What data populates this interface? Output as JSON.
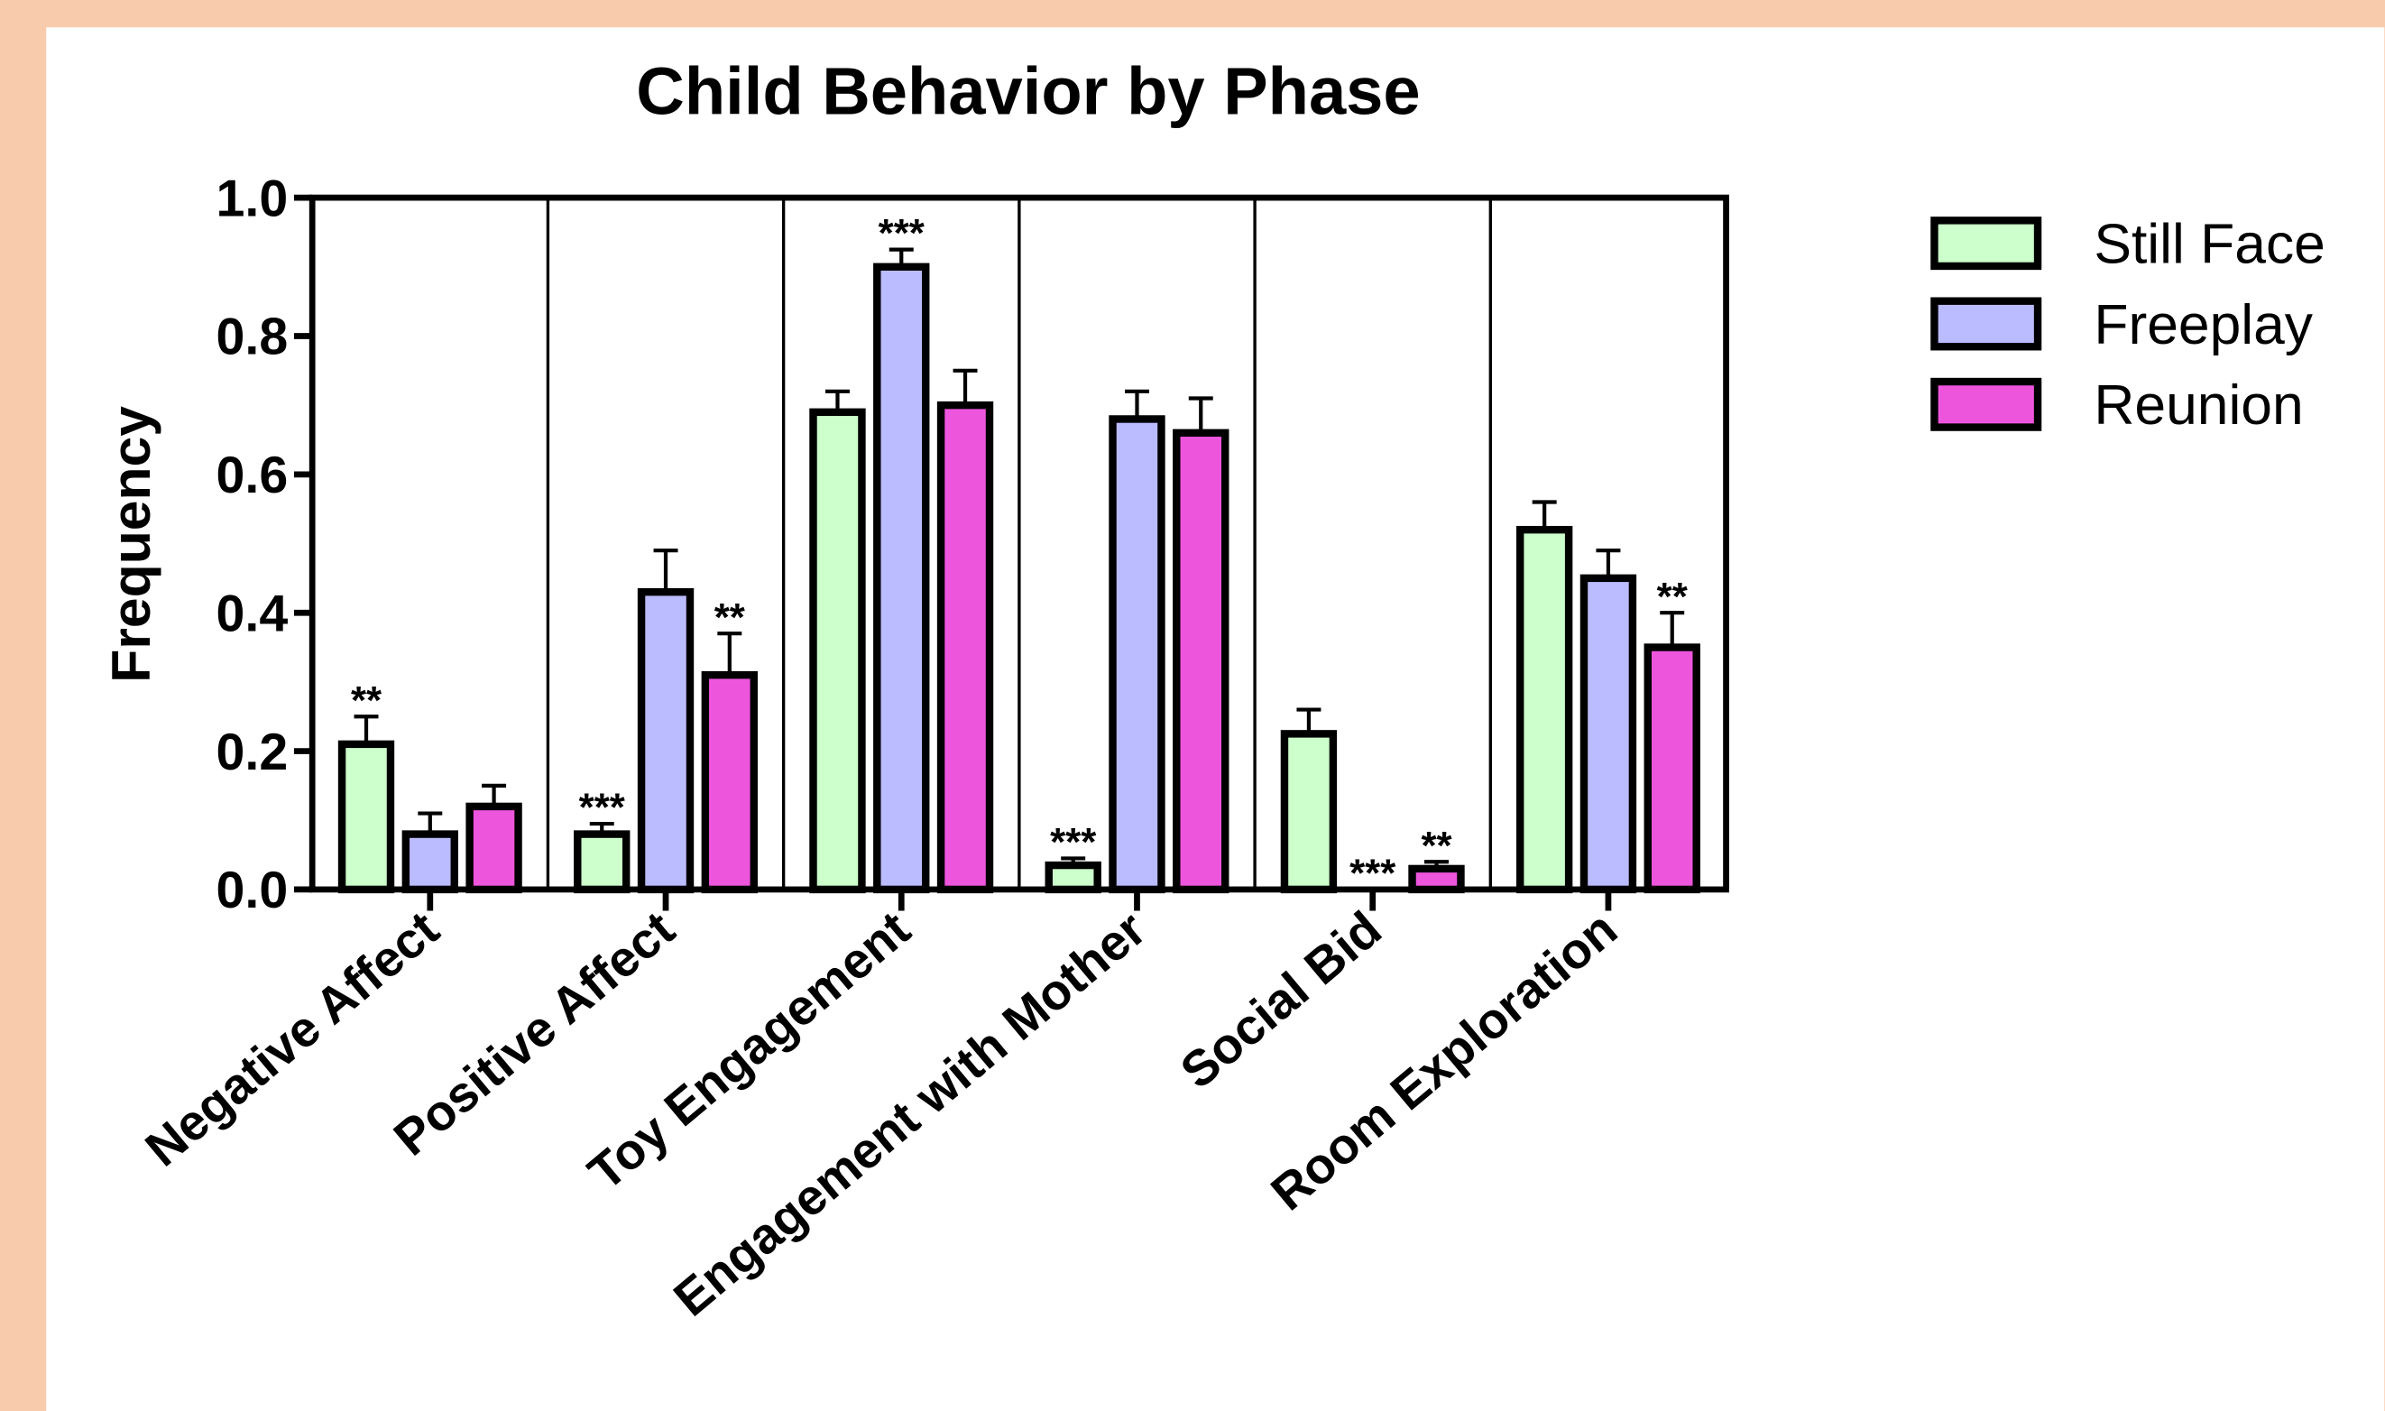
{
  "chart_data": {
    "type": "bar",
    "title": "Child Behavior by Phase",
    "y_label": "Frequency",
    "categories": [
      "Negative Affect",
      "Positive Affect",
      "Toy Engagement",
      "Engagement with Mother",
      "Social Bid",
      "Room Exploration"
    ],
    "series": [
      {
        "name": "Still Face",
        "color": "#ccffcc",
        "values": [
          0.21,
          0.08,
          0.69,
          0.035,
          0.225,
          0.52
        ],
        "errors": [
          0.04,
          0.015,
          0.03,
          0.01,
          0.035,
          0.04
        ],
        "significance": [
          "**",
          "***",
          null,
          "***",
          null,
          null
        ]
      },
      {
        "name": "Freeplay",
        "color": "#bbbbff",
        "values": [
          0.08,
          0.43,
          0.9,
          0.68,
          0,
          0.45
        ],
        "errors": [
          0.03,
          0.06,
          0.025,
          0.04,
          0,
          0.04
        ],
        "significance": [
          null,
          null,
          "***",
          null,
          "***",
          null
        ]
      },
      {
        "name": "Reunion",
        "color": "#ee55dd",
        "values": [
          0.12,
          0.31,
          0.7,
          0.66,
          0.03,
          0.35
        ],
        "errors": [
          0.03,
          0.06,
          0.05,
          0.05,
          0.01,
          0.05
        ],
        "significance": [
          null,
          "**",
          null,
          null,
          "**",
          "**"
        ]
      }
    ],
    "ylim": [
      0,
      1
    ],
    "yticks": [
      {
        "value": 0,
        "label": "0.0"
      },
      0.2,
      0.4,
      0.6,
      0.8,
      {
        "value": 1,
        "label": "1.0"
      }
    ],
    "legend": "right"
  }
}
